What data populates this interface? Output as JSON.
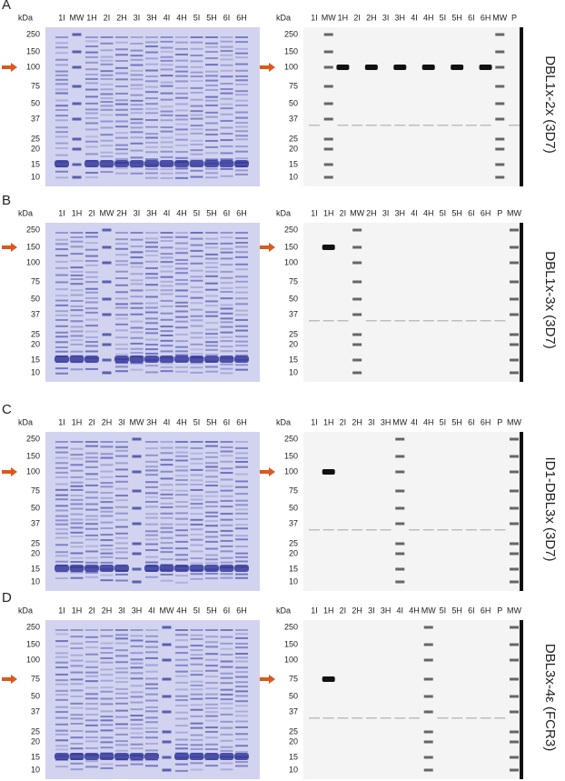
{
  "panels": [
    {
      "letter": "A",
      "label": "DBL1x-2x (3D7)",
      "left": {
        "kda": "kDa",
        "lanes": [
          "1I",
          "MW",
          "1H",
          "2I",
          "2H",
          "3I",
          "3H",
          "4I",
          "4H",
          "5I",
          "5H",
          "6I",
          "6H"
        ],
        "markers": [
          "250",
          "150",
          "100",
          "75",
          "50",
          "37",
          "25",
          "20",
          "15",
          "10"
        ]
      },
      "right": {
        "kda": "kDa",
        "lanes": [
          "1I",
          "MW",
          "1H",
          "2I",
          "2H",
          "3I",
          "3H",
          "4I",
          "4H",
          "5I",
          "5H",
          "6I",
          "6H",
          "MW",
          "P"
        ],
        "markers": [
          "250",
          "150",
          "100",
          "75",
          "50",
          "37",
          "25",
          "20",
          "15",
          "10"
        ]
      }
    },
    {
      "letter": "B",
      "label": "DBL1x-3x (3D7)",
      "left": {
        "kda": "kDa",
        "lanes": [
          "1I",
          "1H",
          "2I",
          "MW",
          "2H",
          "3I",
          "3H",
          "4I",
          "4H",
          "5I",
          "5H",
          "6I",
          "6H"
        ],
        "markers": [
          "250",
          "150",
          "100",
          "75",
          "50",
          "37",
          "25",
          "20",
          "15",
          "10"
        ]
      },
      "right": {
        "kda": "kDa",
        "lanes": [
          "1I",
          "1H",
          "2I",
          "MW",
          "2H",
          "3I",
          "3H",
          "4I",
          "4H",
          "5I",
          "5H",
          "6I",
          "6H",
          "P",
          "MW"
        ],
        "markers": [
          "250",
          "150",
          "100",
          "75",
          "50",
          "37",
          "25",
          "20",
          "15",
          "10"
        ]
      }
    },
    {
      "letter": "C",
      "label": "ID1-DBL3x (3D7)",
      "left": {
        "kda": "kDa",
        "lanes": [
          "1I",
          "1H",
          "2I",
          "2H",
          "3I",
          "MW",
          "3H",
          "4I",
          "4H",
          "5I",
          "5H",
          "6I",
          "6H"
        ],
        "markers": [
          "250",
          "150",
          "100",
          "75",
          "50",
          "37",
          "25",
          "20",
          "15",
          "10"
        ]
      },
      "right": {
        "kda": "kDa",
        "lanes": [
          "1I",
          "1H",
          "2I",
          "2H",
          "3I",
          "3H",
          "MW",
          "4I",
          "4H",
          "5I",
          "5H",
          "6I",
          "6H",
          "P",
          "MW"
        ],
        "markers": [
          "250",
          "150",
          "100",
          "75",
          "50",
          "37",
          "25",
          "20",
          "15",
          "10"
        ]
      }
    },
    {
      "letter": "D",
      "label": "DBL3x-4ε (FCR3)",
      "left": {
        "kda": "kDa",
        "lanes": [
          "1I",
          "1H",
          "2I",
          "2H",
          "3I",
          "3H",
          "4I",
          "MW",
          "4H",
          "5I",
          "5H",
          "6I",
          "6H"
        ],
        "markers": [
          "250",
          "150",
          "100",
          "75",
          "50",
          "37",
          "25",
          "20",
          "15",
          "10"
        ]
      },
      "right": {
        "kda": "kDa",
        "lanes": [
          "1I",
          "1H",
          "2I",
          "2H",
          "3I",
          "3H",
          "4I",
          "4H",
          "MW",
          "5I",
          "5H",
          "6I",
          "6H",
          "P",
          "MW"
        ],
        "markers": [
          "250",
          "150",
          "100",
          "75",
          "50",
          "37",
          "25",
          "20",
          "15",
          "10"
        ]
      }
    }
  ]
}
